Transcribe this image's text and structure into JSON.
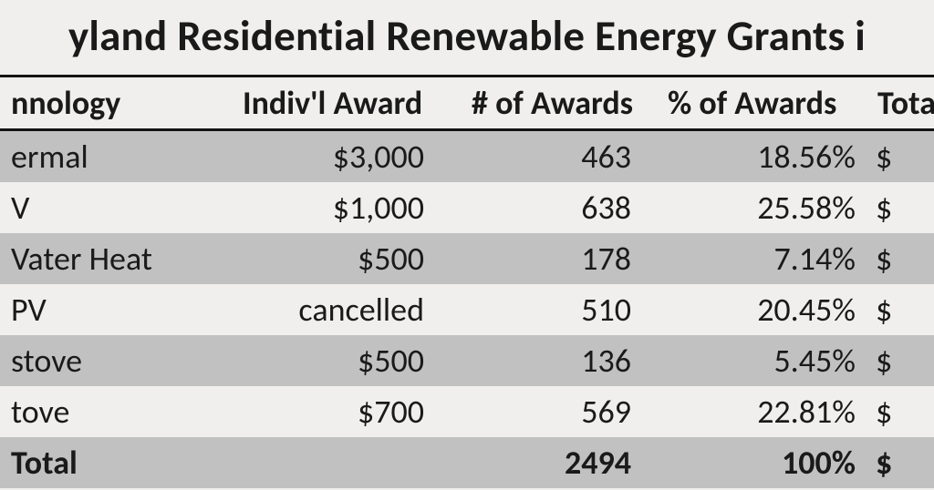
{
  "title": "yland Residential Renewable Energy Grants i",
  "table": {
    "columns": [
      "nnology",
      "Indiv'l Award",
      "# of Awards",
      "%  of Awards",
      "Tota"
    ],
    "rows": [
      {
        "tech": "ermal",
        "award": "$3,000",
        "num": "463",
        "pct": "18.56%",
        "tot": "$",
        "zebra": true
      },
      {
        "tech": "V",
        "award": "$1,000",
        "num": "638",
        "pct": "25.58%",
        "tot": "$",
        "zebra": false
      },
      {
        "tech": "Vater Heat",
        "award": "$500",
        "num": "178",
        "pct": "7.14%",
        "tot": "$",
        "zebra": true
      },
      {
        "tech": "PV",
        "award": "cancelled",
        "num": "510",
        "pct": "20.45%",
        "tot": "$",
        "zebra": false
      },
      {
        "tech": "stove",
        "award": "$500",
        "num": "136",
        "pct": "5.45%",
        "tot": "$",
        "zebra": true
      },
      {
        "tech": "tove",
        "award": "$700",
        "num": "569",
        "pct": "22.81%",
        "tot": "$",
        "zebra": false
      }
    ],
    "total": {
      "tech": "Total",
      "award": "",
      "num": "2494",
      "pct": "100%",
      "tot": "$"
    }
  },
  "style": {
    "background_color": "#f0efee",
    "zebra_color": "#c1c1c1",
    "border_color": "#141414",
    "text_color": "#1a1a1a",
    "title_fontsize": 47,
    "cell_fontsize": 36
  }
}
